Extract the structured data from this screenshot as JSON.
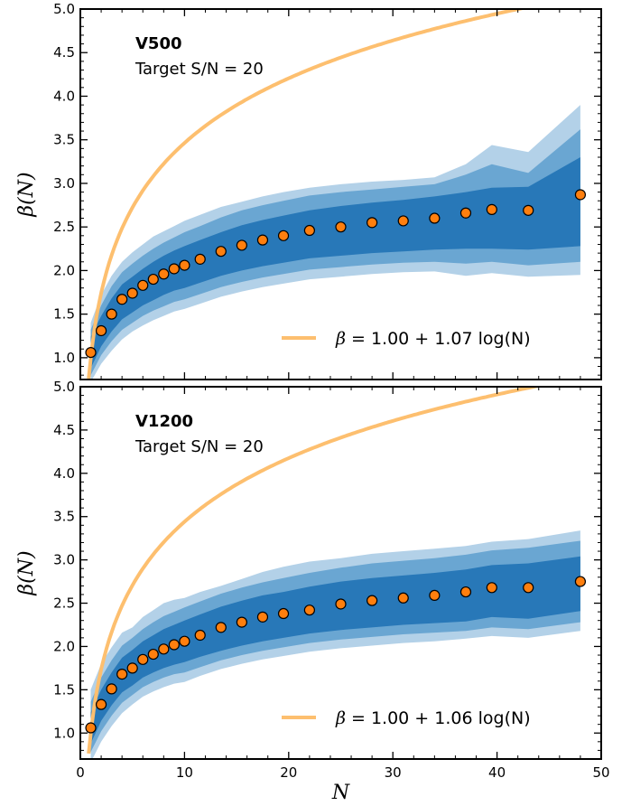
{
  "chart_data": [
    {
      "type": "line",
      "title": "V500",
      "subtitle": "Target S/N = 20",
      "xlabel": "N",
      "ylabel": "β(N)",
      "xlim": [
        0,
        50
      ],
      "ylim": [
        0.75,
        5.0
      ],
      "xticks": [
        0,
        10,
        20,
        30,
        40,
        50
      ],
      "yticks": [
        1.0,
        1.5,
        2.0,
        2.5,
        3.0,
        3.5,
        4.0,
        4.5,
        5.0
      ],
      "grid": false,
      "legend_position": "lower-right",
      "legend": [
        {
          "symbol": "β",
          "text": "= 1.00 + 1.07 log(N)"
        }
      ],
      "fit": {
        "a": 1.0,
        "b": 1.07,
        "color": "#fdbf6f"
      },
      "points_color": "#ff7f0e",
      "band_colors": [
        "#b3d1e8",
        "#6aa6d2",
        "#2878b8"
      ],
      "x": [
        1,
        2,
        3,
        4,
        5,
        6,
        7,
        8,
        9,
        10,
        11.5,
        13.5,
        15.5,
        17.5,
        19.5,
        22,
        25,
        28,
        31,
        34,
        37,
        39.5,
        43,
        48
      ],
      "y": [
        1.06,
        1.31,
        1.5,
        1.67,
        1.74,
        1.83,
        1.9,
        1.96,
        2.02,
        2.06,
        2.13,
        2.22,
        2.29,
        2.35,
        2.4,
        2.46,
        2.5,
        2.55,
        2.57,
        2.6,
        2.66,
        2.7,
        2.69,
        2.87
      ],
      "band3_lo": [
        0.88,
        1.13,
        1.3,
        1.44,
        1.52,
        1.6,
        1.66,
        1.72,
        1.77,
        1.8,
        1.86,
        1.94,
        2.0,
        2.05,
        2.09,
        2.14,
        2.17,
        2.2,
        2.22,
        2.24,
        2.25,
        2.25,
        2.24,
        2.28
      ],
      "band3_hi": [
        1.24,
        1.48,
        1.68,
        1.84,
        1.93,
        2.02,
        2.1,
        2.17,
        2.23,
        2.28,
        2.35,
        2.44,
        2.52,
        2.58,
        2.63,
        2.69,
        2.74,
        2.78,
        2.81,
        2.85,
        2.9,
        2.95,
        2.96,
        3.3
      ],
      "band2_lo": [
        0.8,
        1.03,
        1.19,
        1.32,
        1.4,
        1.48,
        1.54,
        1.59,
        1.64,
        1.67,
        1.73,
        1.81,
        1.87,
        1.92,
        1.96,
        2.01,
        2.04,
        2.07,
        2.09,
        2.1,
        2.08,
        2.1,
        2.06,
        2.1
      ],
      "band2_hi": [
        1.32,
        1.6,
        1.82,
        1.98,
        2.08,
        2.17,
        2.25,
        2.32,
        2.38,
        2.44,
        2.51,
        2.61,
        2.69,
        2.75,
        2.8,
        2.86,
        2.9,
        2.93,
        2.96,
        2.99,
        3.1,
        3.22,
        3.12,
        3.62
      ],
      "band1_lo": [
        0.72,
        0.93,
        1.08,
        1.21,
        1.3,
        1.37,
        1.43,
        1.48,
        1.53,
        1.56,
        1.62,
        1.7,
        1.76,
        1.81,
        1.85,
        1.9,
        1.93,
        1.96,
        1.98,
        1.99,
        1.94,
        1.97,
        1.93,
        1.95
      ],
      "band1_hi": [
        1.4,
        1.72,
        1.94,
        2.1,
        2.21,
        2.3,
        2.39,
        2.45,
        2.51,
        2.57,
        2.64,
        2.73,
        2.79,
        2.85,
        2.9,
        2.95,
        2.99,
        3.02,
        3.04,
        3.07,
        3.22,
        3.44,
        3.36,
        3.9
      ]
    },
    {
      "type": "line",
      "title": "V1200",
      "subtitle": "Target S/N = 20",
      "xlabel": "N",
      "ylabel": "β(N)",
      "xlim": [
        0,
        50
      ],
      "ylim": [
        0.7,
        5.0
      ],
      "xticks": [
        0,
        10,
        20,
        30,
        40,
        50
      ],
      "yticks": [
        1.0,
        1.5,
        2.0,
        2.5,
        3.0,
        3.5,
        4.0,
        4.5,
        5.0
      ],
      "grid": false,
      "legend_position": "lower-right",
      "legend": [
        {
          "symbol": "β",
          "text": "= 1.00 + 1.06 log(N)"
        }
      ],
      "fit": {
        "a": 1.0,
        "b": 1.06,
        "color": "#fdbf6f"
      },
      "points_color": "#ff7f0e",
      "band_colors": [
        "#b3d1e8",
        "#6aa6d2",
        "#2878b8"
      ],
      "x": [
        1,
        2,
        3,
        4,
        5,
        6,
        7,
        8,
        9,
        10,
        11.5,
        13.5,
        15.5,
        17.5,
        19.5,
        22,
        25,
        28,
        31,
        34,
        37,
        39.5,
        43,
        48
      ],
      "y": [
        1.06,
        1.33,
        1.51,
        1.68,
        1.75,
        1.85,
        1.91,
        1.97,
        2.02,
        2.06,
        2.13,
        2.22,
        2.28,
        2.34,
        2.38,
        2.42,
        2.49,
        2.53,
        2.56,
        2.59,
        2.63,
        2.68,
        2.68,
        2.75
      ],
      "band3_lo": [
        0.88,
        1.14,
        1.32,
        1.47,
        1.55,
        1.64,
        1.7,
        1.75,
        1.79,
        1.82,
        1.88,
        1.95,
        2.01,
        2.06,
        2.1,
        2.15,
        2.19,
        2.22,
        2.25,
        2.27,
        2.29,
        2.34,
        2.32,
        2.41
      ],
      "band3_hi": [
        1.24,
        1.5,
        1.7,
        1.87,
        1.96,
        2.06,
        2.13,
        2.2,
        2.25,
        2.3,
        2.37,
        2.46,
        2.53,
        2.59,
        2.63,
        2.69,
        2.75,
        2.79,
        2.82,
        2.85,
        2.89,
        2.94,
        2.96,
        3.04
      ],
      "band2_lo": [
        0.78,
        1.02,
        1.2,
        1.35,
        1.44,
        1.53,
        1.59,
        1.64,
        1.68,
        1.7,
        1.76,
        1.84,
        1.9,
        1.95,
        1.99,
        2.04,
        2.08,
        2.11,
        2.14,
        2.16,
        2.18,
        2.22,
        2.2,
        2.28
      ],
      "band2_hi": [
        1.36,
        1.64,
        1.84,
        2.01,
        2.1,
        2.2,
        2.28,
        2.35,
        2.4,
        2.45,
        2.52,
        2.61,
        2.68,
        2.74,
        2.79,
        2.85,
        2.91,
        2.96,
        2.99,
        3.02,
        3.06,
        3.11,
        3.14,
        3.22
      ],
      "band1_lo": [
        0.66,
        0.9,
        1.08,
        1.23,
        1.33,
        1.42,
        1.48,
        1.53,
        1.57,
        1.59,
        1.66,
        1.74,
        1.8,
        1.85,
        1.89,
        1.94,
        1.98,
        2.01,
        2.04,
        2.06,
        2.09,
        2.12,
        2.1,
        2.18
      ],
      "band1_hi": [
        1.5,
        1.8,
        1.99,
        2.16,
        2.22,
        2.34,
        2.42,
        2.5,
        2.54,
        2.56,
        2.63,
        2.7,
        2.78,
        2.86,
        2.92,
        2.98,
        3.02,
        3.07,
        3.1,
        3.13,
        3.16,
        3.21,
        3.24,
        3.34
      ]
    }
  ]
}
